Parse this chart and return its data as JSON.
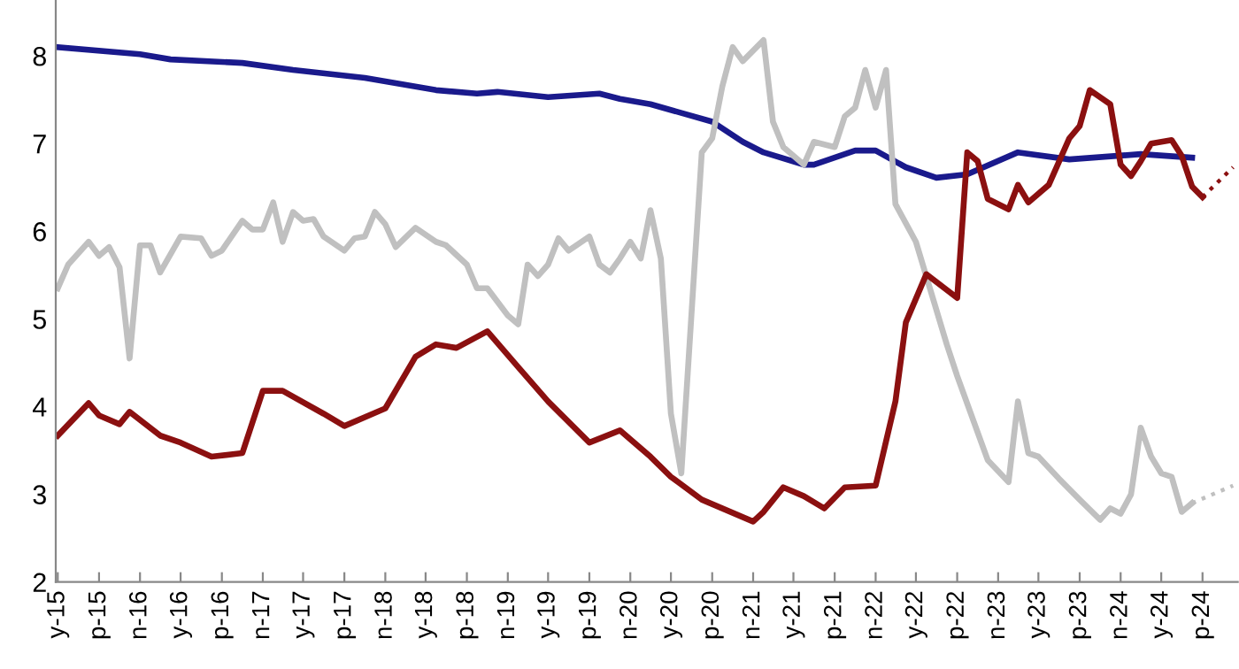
{
  "chart_data": {
    "type": "line",
    "xlim": [
      "2015-04-25",
      "2024-12-15"
    ],
    "ylim": [
      2,
      8.63
    ],
    "xticks": [
      {
        "value": "2015-05",
        "label": "y-15"
      },
      {
        "value": "2015-09",
        "label": "p-15"
      },
      {
        "value": "2016-01",
        "label": "n-16"
      },
      {
        "value": "2016-05",
        "label": "y-16"
      },
      {
        "value": "2016-09",
        "label": "p-16"
      },
      {
        "value": "2017-01",
        "label": "n-17"
      },
      {
        "value": "2017-05",
        "label": "y-17"
      },
      {
        "value": "2017-09",
        "label": "p-17"
      },
      {
        "value": "2018-01",
        "label": "n-18"
      },
      {
        "value": "2018-05",
        "label": "y-18"
      },
      {
        "value": "2018-09",
        "label": "p-18"
      },
      {
        "value": "2019-01",
        "label": "n-19"
      },
      {
        "value": "2019-05",
        "label": "y-19"
      },
      {
        "value": "2019-09",
        "label": "p-19"
      },
      {
        "value": "2020-01",
        "label": "n-20"
      },
      {
        "value": "2020-05",
        "label": "y-20"
      },
      {
        "value": "2020-09",
        "label": "p-20"
      },
      {
        "value": "2021-01",
        "label": "n-21"
      },
      {
        "value": "2021-05",
        "label": "y-21"
      },
      {
        "value": "2021-09",
        "label": "p-21"
      },
      {
        "value": "2022-01",
        "label": "n-22"
      },
      {
        "value": "2022-05",
        "label": "y-22"
      },
      {
        "value": "2022-09",
        "label": "p-22"
      },
      {
        "value": "2023-01",
        "label": "n-23"
      },
      {
        "value": "2023-05",
        "label": "y-23"
      },
      {
        "value": "2023-09",
        "label": "p-23"
      },
      {
        "value": "2024-01",
        "label": "n-24"
      },
      {
        "value": "2024-05",
        "label": "y-24"
      },
      {
        "value": "2024-09",
        "label": "p-24"
      }
    ],
    "yticks": [
      2,
      3,
      4,
      5,
      6,
      7,
      8
    ],
    "grid": false,
    "series": [
      {
        "color": "#1a1a8c",
        "line_style": "solid",
        "x": [
          "2015-05",
          "2016-01",
          "2016-04",
          "2016-11",
          "2017-04",
          "2017-11",
          "2018-06",
          "2018-10",
          "2018-12",
          "2019-05",
          "2019-10",
          "2019-12",
          "2020-03",
          "2020-06",
          "2020-09",
          "2020-12",
          "2021-02",
          "2021-06",
          "2021-07",
          "2021-11",
          "2022-01",
          "2022-04",
          "2022-07",
          "2022-10",
          "2023-03",
          "2023-08",
          "2024-03",
          "2024-08"
        ],
        "values": [
          8.1,
          8.02,
          7.96,
          7.92,
          7.84,
          7.75,
          7.61,
          7.57,
          7.59,
          7.53,
          7.57,
          7.51,
          7.45,
          7.35,
          7.25,
          7.02,
          6.9,
          6.76,
          6.76,
          6.92,
          6.92,
          6.73,
          6.61,
          6.65,
          6.9,
          6.82,
          6.88,
          6.84
        ]
      },
      {
        "color": "#c0c0c0",
        "line_style": "solid",
        "x": [
          "2015-05",
          "2015-06",
          "2015-08",
          "2015-09",
          "2015-10",
          "2015-11",
          "2015-12",
          "2016-01",
          "2016-02",
          "2016-03",
          "2016-05",
          "2016-07",
          "2016-08",
          "2016-09",
          "2016-11",
          "2016-12",
          "2017-01",
          "2017-02",
          "2017-03",
          "2017-04",
          "2017-05",
          "2017-06",
          "2017-07",
          "2017-09",
          "2017-10",
          "2017-11",
          "2017-12",
          "2018-01",
          "2018-02",
          "2018-04",
          "2018-06",
          "2018-07",
          "2018-09",
          "2018-10",
          "2018-11",
          "2019-01",
          "2019-02",
          "2019-03",
          "2019-04",
          "2019-05",
          "2019-06",
          "2019-07",
          "2019-09",
          "2019-10",
          "2019-11",
          "2019-12",
          "2020-01",
          "2020-02",
          "2020-03",
          "2020-04",
          "2020-05",
          "2020-06",
          "2020-08",
          "2020-09",
          "2020-10",
          "2020-11",
          "2020-12",
          "2021-02",
          "2021-03",
          "2021-04",
          "2021-06",
          "2021-07",
          "2021-09",
          "2021-10",
          "2021-11",
          "2021-12",
          "2022-01",
          "2022-02",
          "2022-03",
          "2022-05",
          "2022-08",
          "2022-09",
          "2022-12",
          "2023-02",
          "2023-03",
          "2023-04",
          "2023-05",
          "2023-07",
          "2023-09",
          "2023-11",
          "2023-12",
          "2024-01",
          "2024-02",
          "2024-03",
          "2024-04",
          "2024-05",
          "2024-06",
          "2024-07",
          "2024-08"
        ],
        "values": [
          5.35,
          5.62,
          5.88,
          5.72,
          5.82,
          5.59,
          4.55,
          5.84,
          5.84,
          5.53,
          5.94,
          5.92,
          5.72,
          5.78,
          6.12,
          6.02,
          6.02,
          6.33,
          5.88,
          6.22,
          6.12,
          6.14,
          5.94,
          5.78,
          5.92,
          5.94,
          6.22,
          6.08,
          5.82,
          6.04,
          5.88,
          5.84,
          5.62,
          5.35,
          5.35,
          5.04,
          4.94,
          5.62,
          5.49,
          5.62,
          5.92,
          5.78,
          5.94,
          5.62,
          5.53,
          5.69,
          5.88,
          5.69,
          6.24,
          5.69,
          3.92,
          3.24,
          6.9,
          7.06,
          7.65,
          8.1,
          7.94,
          8.18,
          7.25,
          6.96,
          6.76,
          7.02,
          6.96,
          7.31,
          7.41,
          7.84,
          7.41,
          7.84,
          6.31,
          5.88,
          4.71,
          4.35,
          3.39,
          3.14,
          4.06,
          3.47,
          3.43,
          3.18,
          2.94,
          2.71,
          2.84,
          2.78,
          3.0,
          3.76,
          3.43,
          3.24,
          3.2,
          2.8,
          2.9
        ]
      },
      {
        "color": "#c0c0c0",
        "line_style": "dotted",
        "x": [
          "2024-08",
          "2024-12"
        ],
        "values": [
          2.9,
          3.1
        ]
      },
      {
        "color": "#8b1010",
        "line_style": "solid",
        "x": [
          "2015-05",
          "2015-08",
          "2015-09",
          "2015-11",
          "2015-12",
          "2016-03",
          "2016-05",
          "2016-08",
          "2016-11",
          "2017-01",
          "2017-03",
          "2017-07",
          "2017-09",
          "2018-01",
          "2018-04",
          "2018-06",
          "2018-08",
          "2018-11",
          "2019-02",
          "2019-05",
          "2019-09",
          "2019-12",
          "2020-03",
          "2020-05",
          "2020-08",
          "2021-01",
          "2021-02",
          "2021-04",
          "2021-06",
          "2021-08",
          "2021-10",
          "2022-01",
          "2022-03",
          "2022-04",
          "2022-06",
          "2022-09",
          "2022-10",
          "2022-11",
          "2022-12",
          "2023-02",
          "2023-03",
          "2023-04",
          "2023-06",
          "2023-08",
          "2023-09",
          "2023-10",
          "2023-12",
          "2024-01",
          "2024-02",
          "2024-03",
          "2024-04",
          "2024-06",
          "2024-07",
          "2024-08",
          "2024-09"
        ],
        "values": [
          3.67,
          4.04,
          3.9,
          3.8,
          3.94,
          3.67,
          3.59,
          3.43,
          3.47,
          4.18,
          4.18,
          3.92,
          3.78,
          3.98,
          4.57,
          4.71,
          4.67,
          4.86,
          4.45,
          4.06,
          3.59,
          3.73,
          3.43,
          3.2,
          2.94,
          2.69,
          2.8,
          3.08,
          2.98,
          2.84,
          3.08,
          3.1,
          4.06,
          4.96,
          5.51,
          5.24,
          6.9,
          6.8,
          6.37,
          6.25,
          6.53,
          6.33,
          6.53,
          7.06,
          7.2,
          7.61,
          7.45,
          6.76,
          6.63,
          6.8,
          7.0,
          7.04,
          6.86,
          6.51,
          6.39
        ]
      },
      {
        "color": "#8b1010",
        "line_style": "dotted",
        "x": [
          "2024-09",
          "2024-12"
        ],
        "values": [
          6.39,
          6.73
        ]
      }
    ]
  }
}
